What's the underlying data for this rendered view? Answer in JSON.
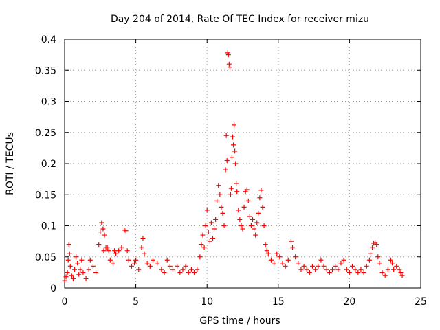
{
  "chart_data": {
    "type": "scatter",
    "title": "Day 204 of 2014, Rate Of TEC Index for receiver mizu",
    "xlabel": "GPS time / hours",
    "ylabel": "ROTI / TECUs",
    "xlim": [
      0,
      25
    ],
    "ylim": [
      0,
      0.4
    ],
    "grid": true,
    "marker": "+",
    "color": "#ff0000",
    "x_ticks": [
      0,
      5,
      10,
      15,
      20,
      25
    ],
    "x_tick_labels": [
      "0",
      "5",
      "10",
      "15",
      "20",
      "25"
    ],
    "y_ticks": [
      0,
      0.05,
      0.1,
      0.15,
      0.2,
      0.25,
      0.3,
      0.35,
      0.4
    ],
    "y_tick_labels": [
      "0",
      "0.05",
      "0.1",
      "0.15",
      "0.2",
      "0.25",
      "0.3",
      "0.35",
      "0.4"
    ],
    "series": [
      {
        "name": "ROTI",
        "points": [
          [
            0.0,
            0.012
          ],
          [
            0.1,
            0.018
          ],
          [
            0.2,
            0.025
          ],
          [
            0.25,
            0.045
          ],
          [
            0.3,
            0.07
          ],
          [
            0.35,
            0.055
          ],
          [
            0.4,
            0.035
          ],
          [
            0.5,
            0.02
          ],
          [
            0.6,
            0.015
          ],
          [
            0.7,
            0.03
          ],
          [
            0.8,
            0.05
          ],
          [
            0.9,
            0.04
          ],
          [
            1.0,
            0.022
          ],
          [
            1.1,
            0.03
          ],
          [
            1.2,
            0.045
          ],
          [
            1.3,
            0.025
          ],
          [
            1.5,
            0.015
          ],
          [
            1.7,
            0.03
          ],
          [
            1.8,
            0.045
          ],
          [
            2.0,
            0.035
          ],
          [
            2.2,
            0.025
          ],
          [
            2.4,
            0.07
          ],
          [
            2.5,
            0.09
          ],
          [
            2.6,
            0.105
          ],
          [
            2.7,
            0.095
          ],
          [
            2.75,
            0.06
          ],
          [
            2.8,
            0.085
          ],
          [
            2.9,
            0.065
          ],
          [
            3.0,
            0.065
          ],
          [
            3.1,
            0.06
          ],
          [
            3.2,
            0.045
          ],
          [
            3.4,
            0.04
          ],
          [
            3.5,
            0.06
          ],
          [
            3.6,
            0.055
          ],
          [
            3.8,
            0.06
          ],
          [
            4.0,
            0.065
          ],
          [
            4.2,
            0.093
          ],
          [
            4.3,
            0.092
          ],
          [
            4.4,
            0.06
          ],
          [
            4.5,
            0.045
          ],
          [
            4.7,
            0.035
          ],
          [
            4.9,
            0.04
          ],
          [
            5.0,
            0.045
          ],
          [
            5.2,
            0.03
          ],
          [
            5.4,
            0.065
          ],
          [
            5.5,
            0.08
          ],
          [
            5.6,
            0.055
          ],
          [
            5.8,
            0.04
          ],
          [
            6.0,
            0.035
          ],
          [
            6.2,
            0.045
          ],
          [
            6.5,
            0.04
          ],
          [
            6.8,
            0.03
          ],
          [
            7.0,
            0.025
          ],
          [
            7.2,
            0.045
          ],
          [
            7.4,
            0.035
          ],
          [
            7.6,
            0.03
          ],
          [
            7.9,
            0.035
          ],
          [
            8.1,
            0.025
          ],
          [
            8.3,
            0.03
          ],
          [
            8.5,
            0.035
          ],
          [
            8.7,
            0.025
          ],
          [
            8.9,
            0.03
          ],
          [
            9.1,
            0.025
          ],
          [
            9.3,
            0.03
          ],
          [
            9.5,
            0.05
          ],
          [
            9.6,
            0.07
          ],
          [
            9.7,
            0.085
          ],
          [
            9.8,
            0.065
          ],
          [
            9.9,
            0.1
          ],
          [
            10.0,
            0.125
          ],
          [
            10.1,
            0.09
          ],
          [
            10.2,
            0.075
          ],
          [
            10.3,
            0.105
          ],
          [
            10.4,
            0.08
          ],
          [
            10.5,
            0.095
          ],
          [
            10.6,
            0.11
          ],
          [
            10.7,
            0.14
          ],
          [
            10.8,
            0.165
          ],
          [
            10.9,
            0.15
          ],
          [
            11.0,
            0.13
          ],
          [
            11.1,
            0.12
          ],
          [
            11.2,
            0.1
          ],
          [
            11.3,
            0.19
          ],
          [
            11.35,
            0.245
          ],
          [
            11.4,
            0.205
          ],
          [
            11.45,
            0.378
          ],
          [
            11.5,
            0.375
          ],
          [
            11.55,
            0.36
          ],
          [
            11.6,
            0.355
          ],
          [
            11.65,
            0.15
          ],
          [
            11.7,
            0.16
          ],
          [
            11.75,
            0.21
          ],
          [
            11.8,
            0.243
          ],
          [
            11.85,
            0.23
          ],
          [
            11.9,
            0.262
          ],
          [
            11.95,
            0.22
          ],
          [
            12.0,
            0.2
          ],
          [
            12.05,
            0.168
          ],
          [
            12.1,
            0.155
          ],
          [
            12.2,
            0.125
          ],
          [
            12.3,
            0.11
          ],
          [
            12.4,
            0.1
          ],
          [
            12.5,
            0.095
          ],
          [
            12.6,
            0.13
          ],
          [
            12.7,
            0.155
          ],
          [
            12.8,
            0.158
          ],
          [
            12.9,
            0.14
          ],
          [
            13.0,
            0.115
          ],
          [
            13.1,
            0.1
          ],
          [
            13.2,
            0.11
          ],
          [
            13.3,
            0.095
          ],
          [
            13.4,
            0.085
          ],
          [
            13.5,
            0.105
          ],
          [
            13.6,
            0.12
          ],
          [
            13.7,
            0.145
          ],
          [
            13.8,
            0.157
          ],
          [
            13.9,
            0.13
          ],
          [
            14.0,
            0.1
          ],
          [
            14.1,
            0.07
          ],
          [
            14.2,
            0.06
          ],
          [
            14.3,
            0.055
          ],
          [
            14.5,
            0.045
          ],
          [
            14.7,
            0.04
          ],
          [
            14.9,
            0.055
          ],
          [
            15.1,
            0.05
          ],
          [
            15.3,
            0.04
          ],
          [
            15.5,
            0.035
          ],
          [
            15.7,
            0.045
          ],
          [
            15.9,
            0.075
          ],
          [
            16.0,
            0.065
          ],
          [
            16.2,
            0.05
          ],
          [
            16.4,
            0.04
          ],
          [
            16.6,
            0.03
          ],
          [
            16.8,
            0.035
          ],
          [
            17.0,
            0.03
          ],
          [
            17.2,
            0.025
          ],
          [
            17.4,
            0.035
          ],
          [
            17.6,
            0.03
          ],
          [
            17.8,
            0.035
          ],
          [
            18.0,
            0.045
          ],
          [
            18.2,
            0.035
          ],
          [
            18.4,
            0.03
          ],
          [
            18.6,
            0.025
          ],
          [
            18.8,
            0.03
          ],
          [
            19.0,
            0.035
          ],
          [
            19.2,
            0.03
          ],
          [
            19.4,
            0.04
          ],
          [
            19.6,
            0.045
          ],
          [
            19.8,
            0.03
          ],
          [
            20.0,
            0.025
          ],
          [
            20.2,
            0.035
          ],
          [
            20.4,
            0.03
          ],
          [
            20.6,
            0.025
          ],
          [
            20.8,
            0.03
          ],
          [
            21.0,
            0.025
          ],
          [
            21.2,
            0.035
          ],
          [
            21.4,
            0.045
          ],
          [
            21.5,
            0.055
          ],
          [
            21.6,
            0.065
          ],
          [
            21.7,
            0.072
          ],
          [
            21.8,
            0.073
          ],
          [
            21.9,
            0.07
          ],
          [
            22.0,
            0.05
          ],
          [
            22.1,
            0.04
          ],
          [
            22.3,
            0.025
          ],
          [
            22.5,
            0.02
          ],
          [
            22.7,
            0.03
          ],
          [
            22.9,
            0.045
          ],
          [
            23.0,
            0.04
          ],
          [
            23.1,
            0.03
          ],
          [
            23.3,
            0.035
          ],
          [
            23.5,
            0.03
          ],
          [
            23.6,
            0.025
          ],
          [
            23.7,
            0.02
          ]
        ]
      }
    ]
  }
}
